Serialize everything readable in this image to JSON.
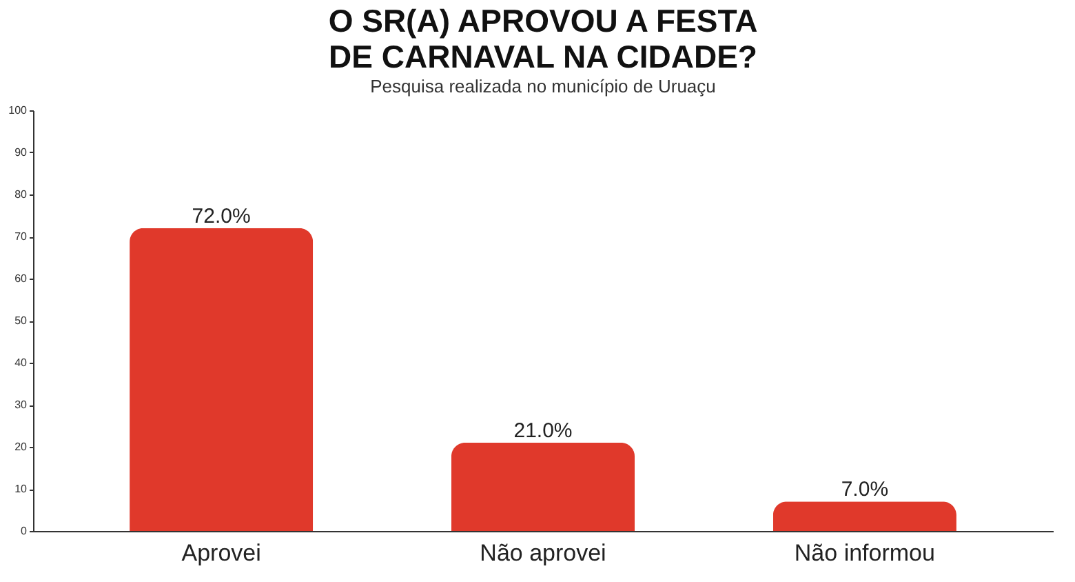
{
  "chart_data": {
    "type": "bar",
    "title": "O SR(A) APROVOU A FESTA DE CARNAVAL NA CIDADE?",
    "subtitle": "Pesquisa realizada no município de Uruaçu",
    "categories": [
      "Aprovei",
      "Não aprovei",
      "Não informou"
    ],
    "values": [
      72,
      21,
      7
    ],
    "color": "#e0392b",
    "value_labels": [
      "72.0%",
      "21.0%",
      "7.0%"
    ],
    "ylim": [
      0,
      100
    ],
    "yticks": [
      0,
      10,
      20,
      30,
      40,
      50,
      60,
      70,
      80,
      90,
      100
    ],
    "grid": false
  }
}
